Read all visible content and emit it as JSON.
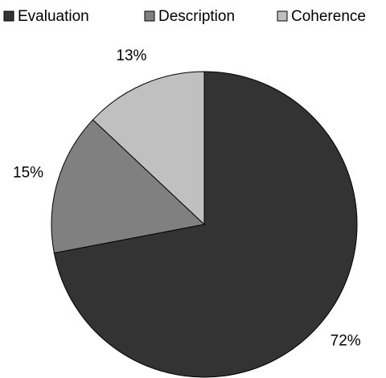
{
  "chart_data": {
    "type": "pie",
    "categories": [
      "Evaluation",
      "Description",
      "Coherence"
    ],
    "values": [
      72,
      15,
      13
    ],
    "value_labels": [
      "72%",
      "15%",
      "13%"
    ],
    "colors": [
      "#333333",
      "#808080",
      "#c0c0c0"
    ],
    "legend": "top"
  }
}
